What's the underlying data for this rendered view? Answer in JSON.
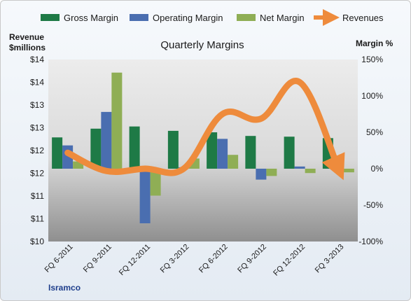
{
  "chart_data": {
    "type": "bar+line",
    "title": "Quarterly Margins",
    "company": "Isramco",
    "y_left_label_line1": "Revenue",
    "y_left_label_line2": "$millions",
    "y_right_label": "Margin %",
    "y_left_ticks": [
      "$10",
      "$11",
      "$11",
      "$12",
      "$12",
      "$13",
      "$13",
      "$14",
      "$14"
    ],
    "y_left_range": [
      10,
      14
    ],
    "y_right_ticks": [
      "-100%",
      "-50%",
      "0%",
      "50%",
      "100%",
      "150%"
    ],
    "y_right_range": [
      -100,
      150
    ],
    "categories": [
      "FQ 6-2011",
      "FQ 9-2011",
      "FQ 12-2011",
      "FQ 3-2012",
      "FQ 6-2012",
      "FQ 9-2012",
      "FQ 12-2012",
      "FQ 3-2013"
    ],
    "bar_series": [
      {
        "name": "Gross Margin",
        "color": "#1e7a46",
        "values": [
          43,
          55,
          58,
          52,
          50,
          45,
          44,
          42
        ]
      },
      {
        "name": "Operating Margin",
        "color": "#4a6eb0",
        "values": [
          32,
          78,
          -75,
          2,
          41,
          -15,
          3,
          7
        ]
      },
      {
        "name": "Net Margin",
        "color": "#8fae55",
        "values": [
          10,
          132,
          -37,
          14,
          19,
          -10,
          -6,
          -5
        ]
      }
    ],
    "line_series": {
      "name": "Revenues",
      "color": "#ee8b3c",
      "values": [
        11.95,
        11.55,
        11.6,
        11.6,
        12.8,
        12.7,
        13.5,
        11.6
      ]
    },
    "legend_position": "top",
    "grid": false
  }
}
